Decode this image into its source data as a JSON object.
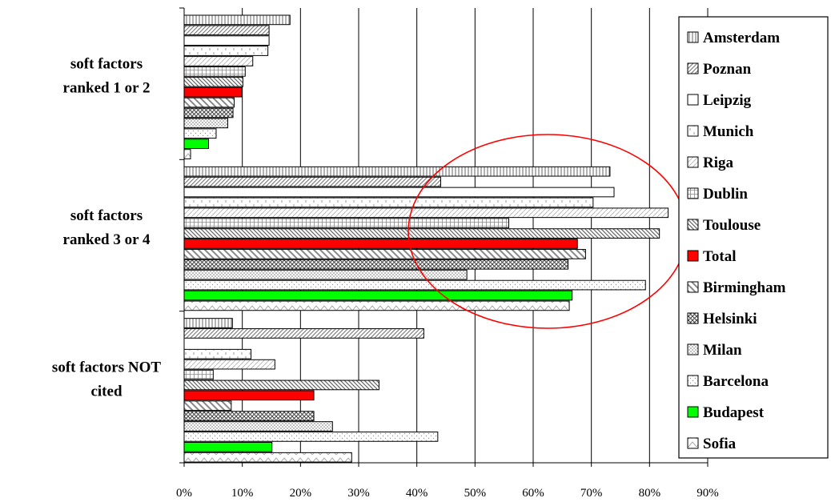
{
  "chart_data": {
    "type": "bar",
    "orientation": "horizontal",
    "categories": [
      "soft factors ranked 1 or 2",
      "soft factors ranked 3 or 4",
      "soft factors NOT cited"
    ],
    "category_labels": [
      [
        "soft factors",
        "ranked 1 or 2"
      ],
      [
        "soft factors",
        "ranked 3 or 4"
      ],
      [
        "soft factors NOT",
        "cited"
      ]
    ],
    "series": [
      {
        "name": "Amsterdam",
        "values": [
          18.2,
          73.2,
          8.3
        ],
        "fill": "#ffffff",
        "pattern": "vlines"
      },
      {
        "name": "Poznan",
        "values": [
          14.6,
          44.1,
          41.2
        ],
        "fill": "#ffffff",
        "pattern": "diag-fwd"
      },
      {
        "name": "Leipzig",
        "values": [
          14.6,
          73.9,
          0.0
        ],
        "fill": "#ffffff",
        "pattern": "none"
      },
      {
        "name": "Munich",
        "values": [
          14.4,
          70.3,
          11.5
        ],
        "fill": "#ffffff",
        "pattern": "sparse-vlines"
      },
      {
        "name": "Riga",
        "values": [
          11.8,
          83.2,
          15.6
        ],
        "fill": "#ffffff",
        "pattern": "light-diag"
      },
      {
        "name": "Dublin",
        "values": [
          10.5,
          55.8,
          5.0
        ],
        "fill": "#ffffff",
        "pattern": "grid"
      },
      {
        "name": "Toulouse",
        "values": [
          10.1,
          81.7,
          33.5
        ],
        "fill": "#ffffff",
        "pattern": "diag-back"
      },
      {
        "name": "Total",
        "values": [
          9.9,
          67.6,
          22.3
        ],
        "fill": "#ff0000",
        "pattern": "solid"
      },
      {
        "name": "Birmingham",
        "values": [
          8.6,
          69.0,
          8.1
        ],
        "fill": "#ffffff",
        "pattern": "diag-back-wide"
      },
      {
        "name": "Helsinki",
        "values": [
          8.4,
          66.0,
          22.3
        ],
        "fill": "#ffffff",
        "pattern": "crosshatch"
      },
      {
        "name": "Milan",
        "values": [
          7.5,
          48.6,
          25.5
        ],
        "fill": "#ffffff",
        "pattern": "dots"
      },
      {
        "name": "Barcelona",
        "values": [
          5.5,
          79.3,
          43.6
        ],
        "fill": "#ffffff",
        "pattern": "sparse-dots"
      },
      {
        "name": "Budapest",
        "values": [
          4.2,
          66.7,
          15.1
        ],
        "fill": "#00ff00",
        "pattern": "solid"
      },
      {
        "name": "Sofia",
        "values": [
          1.1,
          66.2,
          28.8
        ],
        "fill": "#ffffff",
        "pattern": "zigzag"
      }
    ],
    "xlim": [
      0,
      90
    ],
    "x_ticks": [
      "0%",
      "10%",
      "20%",
      "30%",
      "40%",
      "50%",
      "60%",
      "70%",
      "80%",
      "90%"
    ],
    "grid": "vertical",
    "legend": "right",
    "annotation": {
      "type": "ellipse",
      "color": "#ff0000",
      "around": "soft factors ranked 3 or 4, 40%–85%"
    }
  },
  "colors": {
    "total": "#ff0000",
    "budapest": "#00ff00",
    "annotation": "#ff0000"
  }
}
